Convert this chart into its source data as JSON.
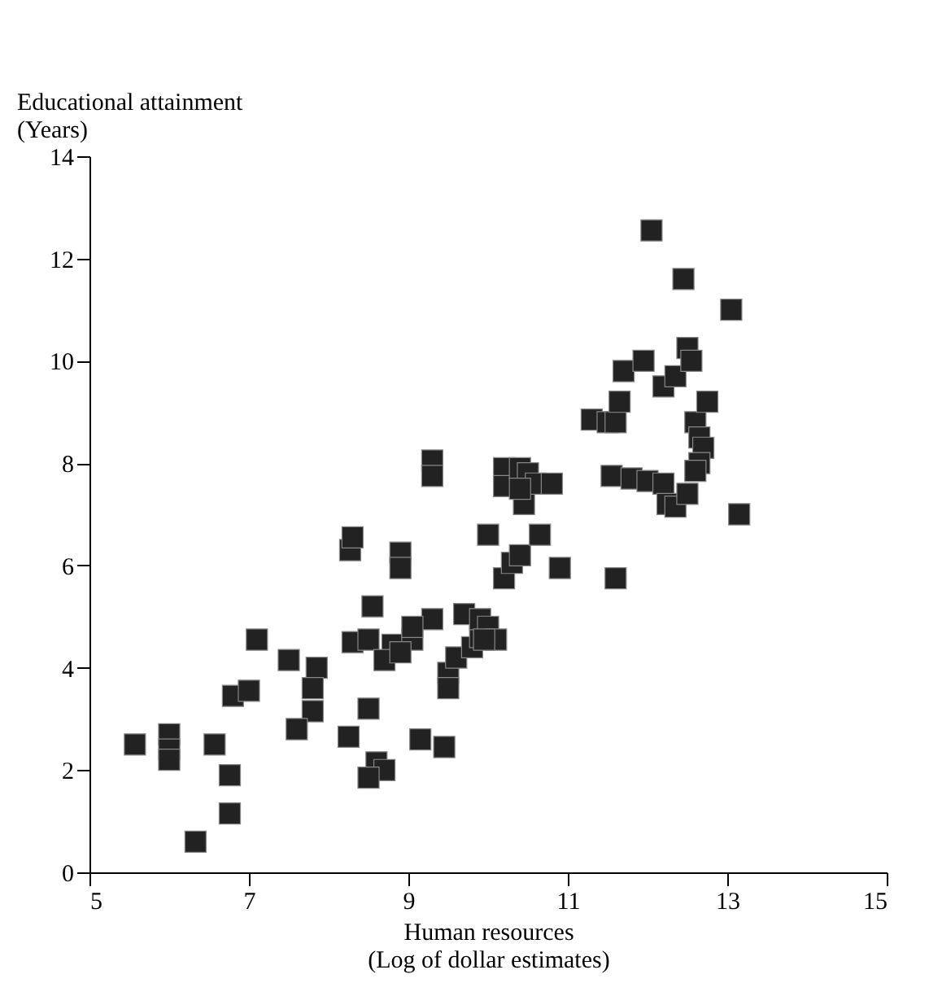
{
  "chart_data": {
    "type": "scatter",
    "xlabel": "Human resources\n(Log of dollar estimates)",
    "ylabel": "Educational attainment\n(Years)",
    "xlim": [
      5,
      15
    ],
    "xticks": [
      5,
      7,
      9,
      11,
      13,
      15
    ],
    "ylim": [
      0,
      14
    ],
    "yticks": [
      0,
      2,
      4,
      6,
      8,
      10,
      12,
      14
    ],
    "grid": false,
    "marker": "square",
    "legend": false,
    "series": [
      {
        "color": "#222222",
        "x": [
          5.57,
          6.0,
          6.0,
          6.0,
          6.57,
          6.76,
          6.76,
          6.33,
          6.8,
          7.0,
          7.1,
          7.5,
          7.85,
          7.8,
          7.8,
          7.6,
          8.25,
          8.5,
          8.6,
          8.7,
          8.5,
          8.3,
          8.5,
          8.8,
          9.05,
          8.7,
          8.9,
          8.55,
          8.27,
          8.3,
          8.9,
          8.9,
          9.3,
          9.3,
          9.3,
          9.05,
          9.15,
          9.45,
          9.5,
          9.5,
          9.6,
          9.8,
          9.9,
          9.7,
          9.9,
          10.0,
          10.1,
          9.95,
          10.0,
          10.2,
          10.3,
          10.4,
          10.65,
          10.9,
          10.2,
          10.2,
          10.4,
          10.5,
          10.45,
          10.6,
          10.8,
          10.4,
          11.3,
          11.5,
          11.6,
          11.65,
          11.7,
          11.95,
          12.05,
          11.6,
          11.55,
          11.8,
          12.0,
          12.2,
          12.25,
          12.35,
          12.5,
          12.2,
          12.35,
          12.45,
          12.5,
          12.55,
          12.6,
          12.65,
          12.7,
          12.65,
          12.6,
          12.75,
          13.05,
          13.15
        ],
        "values": [
          2.5,
          2.7,
          2.4,
          2.2,
          2.5,
          1.9,
          1.15,
          0.6,
          3.45,
          3.55,
          4.55,
          4.15,
          4.0,
          3.6,
          3.15,
          2.8,
          2.65,
          3.2,
          2.15,
          2.0,
          1.85,
          4.5,
          4.55,
          4.45,
          4.55,
          4.15,
          4.3,
          5.2,
          6.3,
          6.55,
          6.25,
          5.95,
          8.05,
          7.75,
          4.95,
          4.8,
          2.6,
          2.45,
          3.9,
          3.6,
          4.2,
          4.4,
          4.6,
          5.05,
          4.95,
          4.8,
          4.55,
          4.55,
          6.6,
          5.75,
          6.05,
          6.2,
          6.6,
          5.95,
          7.9,
          7.55,
          7.9,
          7.8,
          7.2,
          7.6,
          7.6,
          7.5,
          8.85,
          8.8,
          8.8,
          9.2,
          9.8,
          10.0,
          12.55,
          5.75,
          7.75,
          7.7,
          7.65,
          7.6,
          7.2,
          7.15,
          7.4,
          9.5,
          9.7,
          11.6,
          10.25,
          10.0,
          8.8,
          8.5,
          8.3,
          8.0,
          7.85,
          9.2,
          11.0,
          7.0
        ]
      }
    ]
  }
}
